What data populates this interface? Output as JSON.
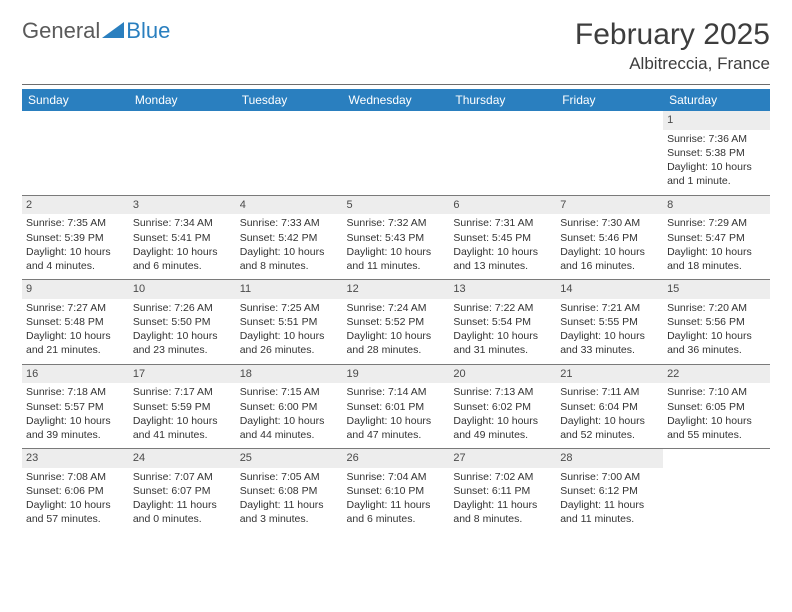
{
  "brand": {
    "word1": "General",
    "word2": "Blue"
  },
  "colors": {
    "header_bg": "#2a7fbf",
    "header_fg": "#ffffff",
    "daynum_bg": "#ededed",
    "rule": "#7a7a7a",
    "text": "#333333"
  },
  "title": "February 2025",
  "location": "Albitreccia, France",
  "weekdays": [
    "Sunday",
    "Monday",
    "Tuesday",
    "Wednesday",
    "Thursday",
    "Friday",
    "Saturday"
  ],
  "weeks": [
    [
      null,
      null,
      null,
      null,
      null,
      null,
      {
        "n": "1",
        "sunrise": "7:36 AM",
        "sunset": "5:38 PM",
        "daylight": "10 hours and 1 minute."
      }
    ],
    [
      {
        "n": "2",
        "sunrise": "7:35 AM",
        "sunset": "5:39 PM",
        "daylight": "10 hours and 4 minutes."
      },
      {
        "n": "3",
        "sunrise": "7:34 AM",
        "sunset": "5:41 PM",
        "daylight": "10 hours and 6 minutes."
      },
      {
        "n": "4",
        "sunrise": "7:33 AM",
        "sunset": "5:42 PM",
        "daylight": "10 hours and 8 minutes."
      },
      {
        "n": "5",
        "sunrise": "7:32 AM",
        "sunset": "5:43 PM",
        "daylight": "10 hours and 11 minutes."
      },
      {
        "n": "6",
        "sunrise": "7:31 AM",
        "sunset": "5:45 PM",
        "daylight": "10 hours and 13 minutes."
      },
      {
        "n": "7",
        "sunrise": "7:30 AM",
        "sunset": "5:46 PM",
        "daylight": "10 hours and 16 minutes."
      },
      {
        "n": "8",
        "sunrise": "7:29 AM",
        "sunset": "5:47 PM",
        "daylight": "10 hours and 18 minutes."
      }
    ],
    [
      {
        "n": "9",
        "sunrise": "7:27 AM",
        "sunset": "5:48 PM",
        "daylight": "10 hours and 21 minutes."
      },
      {
        "n": "10",
        "sunrise": "7:26 AM",
        "sunset": "5:50 PM",
        "daylight": "10 hours and 23 minutes."
      },
      {
        "n": "11",
        "sunrise": "7:25 AM",
        "sunset": "5:51 PM",
        "daylight": "10 hours and 26 minutes."
      },
      {
        "n": "12",
        "sunrise": "7:24 AM",
        "sunset": "5:52 PM",
        "daylight": "10 hours and 28 minutes."
      },
      {
        "n": "13",
        "sunrise": "7:22 AM",
        "sunset": "5:54 PM",
        "daylight": "10 hours and 31 minutes."
      },
      {
        "n": "14",
        "sunrise": "7:21 AM",
        "sunset": "5:55 PM",
        "daylight": "10 hours and 33 minutes."
      },
      {
        "n": "15",
        "sunrise": "7:20 AM",
        "sunset": "5:56 PM",
        "daylight": "10 hours and 36 minutes."
      }
    ],
    [
      {
        "n": "16",
        "sunrise": "7:18 AM",
        "sunset": "5:57 PM",
        "daylight": "10 hours and 39 minutes."
      },
      {
        "n": "17",
        "sunrise": "7:17 AM",
        "sunset": "5:59 PM",
        "daylight": "10 hours and 41 minutes."
      },
      {
        "n": "18",
        "sunrise": "7:15 AM",
        "sunset": "6:00 PM",
        "daylight": "10 hours and 44 minutes."
      },
      {
        "n": "19",
        "sunrise": "7:14 AM",
        "sunset": "6:01 PM",
        "daylight": "10 hours and 47 minutes."
      },
      {
        "n": "20",
        "sunrise": "7:13 AM",
        "sunset": "6:02 PM",
        "daylight": "10 hours and 49 minutes."
      },
      {
        "n": "21",
        "sunrise": "7:11 AM",
        "sunset": "6:04 PM",
        "daylight": "10 hours and 52 minutes."
      },
      {
        "n": "22",
        "sunrise": "7:10 AM",
        "sunset": "6:05 PM",
        "daylight": "10 hours and 55 minutes."
      }
    ],
    [
      {
        "n": "23",
        "sunrise": "7:08 AM",
        "sunset": "6:06 PM",
        "daylight": "10 hours and 57 minutes."
      },
      {
        "n": "24",
        "sunrise": "7:07 AM",
        "sunset": "6:07 PM",
        "daylight": "11 hours and 0 minutes."
      },
      {
        "n": "25",
        "sunrise": "7:05 AM",
        "sunset": "6:08 PM",
        "daylight": "11 hours and 3 minutes."
      },
      {
        "n": "26",
        "sunrise": "7:04 AM",
        "sunset": "6:10 PM",
        "daylight": "11 hours and 6 minutes."
      },
      {
        "n": "27",
        "sunrise": "7:02 AM",
        "sunset": "6:11 PM",
        "daylight": "11 hours and 8 minutes."
      },
      {
        "n": "28",
        "sunrise": "7:00 AM",
        "sunset": "6:12 PM",
        "daylight": "11 hours and 11 minutes."
      },
      null
    ]
  ],
  "labels": {
    "sunrise": "Sunrise: ",
    "sunset": "Sunset: ",
    "daylight": "Daylight: "
  }
}
